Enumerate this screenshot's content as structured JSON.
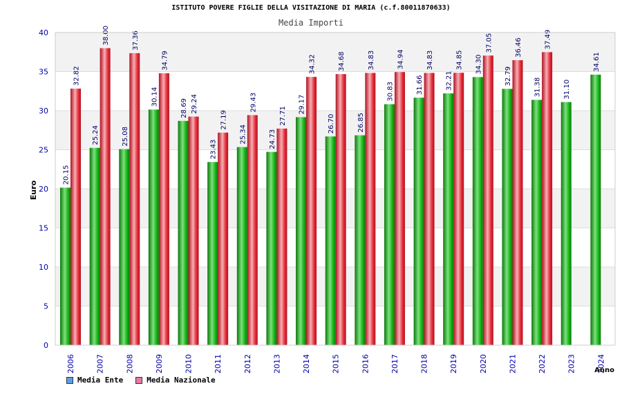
{
  "title": "ISTITUTO POVERE FIGLIE DELLA VISITAZIONE DI MARIA (c.f.80011870633)",
  "colors": {
    "ente": "#18b818",
    "nazionale": "#e8303c",
    "legend_ente": "#5aa0e8",
    "legend_nazionale": "#e878a8",
    "band": "#f2f2f2",
    "axis_text": "#0000aa",
    "value_text": "#000066"
  },
  "chart_data": {
    "type": "bar",
    "title": "Media Importi",
    "xlabel": "Anno",
    "ylabel": "Euro",
    "ylim": [
      0,
      40
    ],
    "yticks": [
      "0",
      "5",
      "10",
      "15",
      "20",
      "25",
      "30",
      "35",
      "40"
    ],
    "grid": true,
    "legend_position": "bottom-left",
    "categories": [
      "2006",
      "2007",
      "2008",
      "2009",
      "2010",
      "2011",
      "2012",
      "2013",
      "2014",
      "2015",
      "2016",
      "2017",
      "2018",
      "2019",
      "2020",
      "2021",
      "2022",
      "2023",
      "2024"
    ],
    "series": [
      {
        "name": "Media Ente",
        "values": [
          20.15,
          25.24,
          25.08,
          30.14,
          28.69,
          23.43,
          25.34,
          24.73,
          29.17,
          26.7,
          26.85,
          30.83,
          31.66,
          32.21,
          34.3,
          32.79,
          31.38,
          31.1,
          34.61
        ],
        "labels": [
          "20.15",
          "25.24",
          "25.08",
          "30.14",
          "28.69",
          "23.43",
          "25.34",
          "24.73",
          "29.17",
          "26.70",
          "26.85",
          "30.83",
          "31.66",
          "32.21",
          "34.30",
          "32.79",
          "31.38",
          "31.10",
          "34.61"
        ]
      },
      {
        "name": "Media Nazionale",
        "values": [
          32.82,
          38.0,
          37.36,
          34.79,
          29.24,
          27.19,
          29.43,
          27.71,
          34.32,
          34.68,
          34.83,
          34.94,
          34.83,
          34.85,
          37.05,
          36.46,
          37.49,
          null,
          null
        ],
        "labels": [
          "32.82",
          "38.00",
          "37.36",
          "34.79",
          "29.24",
          "27.19",
          "29.43",
          "27.71",
          "34.32",
          "34.68",
          "34.83",
          "34.94",
          "34.83",
          "34.85",
          "37.05",
          "36.46",
          "37.49",
          "",
          ""
        ]
      }
    ]
  }
}
